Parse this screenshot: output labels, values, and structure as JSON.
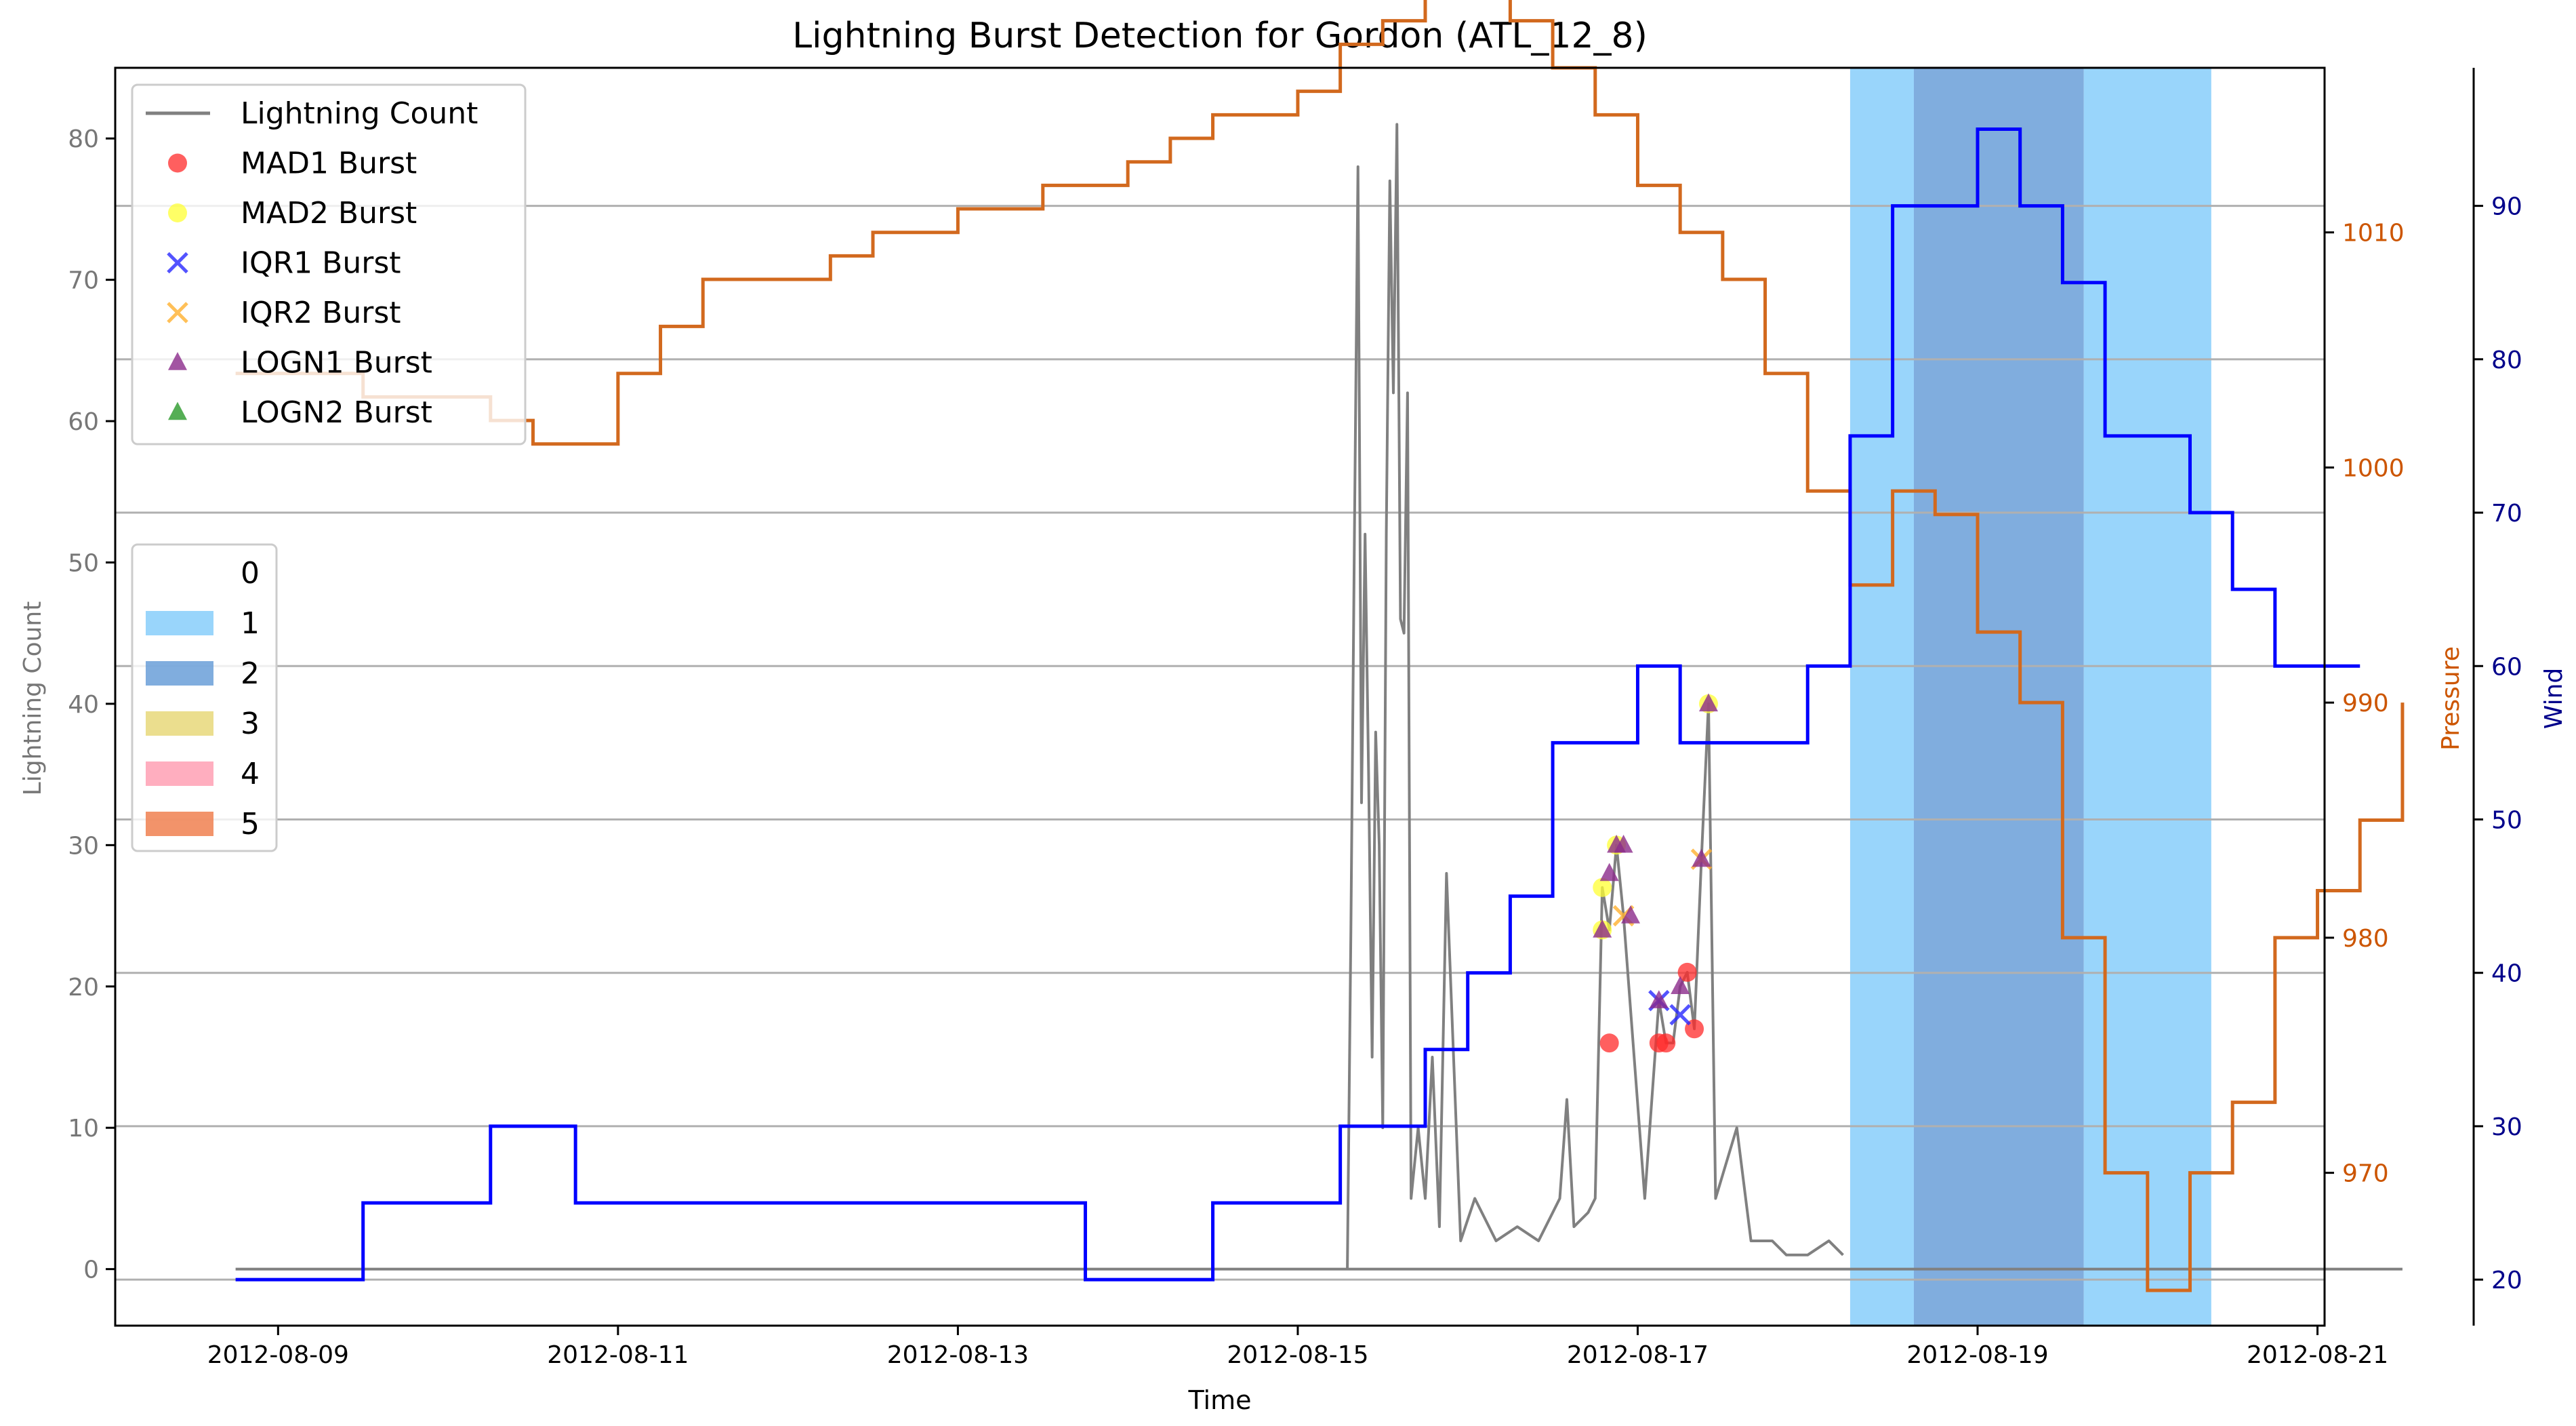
{
  "chart_data": {
    "type": "line",
    "title": "Lightning Burst Detection for Gordon (ATL_12_8)",
    "xlabel": "Time",
    "ylabel_left": "Lightning Count",
    "ylabel_pressure": "Pressure",
    "ylabel_wind": "Wind",
    "x_ticks": [
      "2012-08-09",
      "2012-08-11",
      "2012-08-13",
      "2012-08-15",
      "2012-08-17",
      "2012-08-19",
      "2012-08-21"
    ],
    "xlim": [
      "2012-08-08 01:00",
      "2012-08-21 01:00"
    ],
    "ylim_count": [
      -4,
      85
    ],
    "ylim_pressure": [
      963.5,
      1017
    ],
    "ylim_wind": [
      17,
      99
    ],
    "yticks_count": [
      0,
      10,
      20,
      30,
      40,
      50,
      60,
      70,
      80
    ],
    "yticks_pressure": [
      970,
      980,
      990,
      1000,
      1010
    ],
    "yticks_wind": [
      20,
      30,
      40,
      50,
      60,
      70,
      80,
      90
    ],
    "colors": {
      "lightning": "#808080",
      "pressure": "#d2691e",
      "wind": "#0000ff",
      "pressure_axis": "#cc5500",
      "wind_axis": "#00008b",
      "cat0": "#ffffff",
      "cat1": "#87cefa",
      "cat2": "#6a9fd8",
      "cat3": "#e8d87a",
      "cat4": "#ffa0b4",
      "cat5": "#f08050"
    },
    "category_spans": [
      {
        "category": 1,
        "start": "2012-08-18 06:00",
        "end": "2012-08-18 15:00"
      },
      {
        "category": 2,
        "start": "2012-08-18 15:00",
        "end": "2012-08-19 15:00"
      },
      {
        "category": 1,
        "start": "2012-08-19 15:00",
        "end": "2012-08-20 09:00"
      }
    ],
    "legend_series": [
      {
        "label": "Lightning Count",
        "marker": "line",
        "color": "#808080"
      },
      {
        "label": "MAD1 Burst",
        "marker": "circle",
        "color": "#ff2a2a"
      },
      {
        "label": "MAD2 Burst",
        "marker": "circle",
        "color": "#ffff33"
      },
      {
        "label": "IQR1 Burst",
        "marker": "x",
        "color": "#2828ff"
      },
      {
        "label": "IQR2 Burst",
        "marker": "x",
        "color": "#ffb02e"
      },
      {
        "label": "LOGN1 Burst",
        "marker": "triangle",
        "color": "#8b2a8b"
      },
      {
        "label": "LOGN2 Burst",
        "marker": "triangle",
        "color": "#2a9a2a"
      }
    ],
    "legend_categories": [
      {
        "label": "0",
        "color": "#ffffff"
      },
      {
        "label": "1",
        "color": "#87cefa"
      },
      {
        "label": "2",
        "color": "#6a9fd8"
      },
      {
        "label": "3",
        "color": "#e8d87a"
      },
      {
        "label": "4",
        "color": "#ffa0b4"
      },
      {
        "label": "5",
        "color": "#f08050"
      }
    ],
    "pressure_steps": [
      [
        "2012-08-08 18:00",
        1004
      ],
      [
        "2012-08-09 12:00",
        1003
      ],
      [
        "2012-08-10 06:00",
        1002
      ],
      [
        "2012-08-10 12:00",
        1001
      ],
      [
        "2012-08-11 00:00",
        1004
      ],
      [
        "2012-08-11 06:00",
        1006
      ],
      [
        "2012-08-11 12:00",
        1008
      ],
      [
        "2012-08-12 06:00",
        1009
      ],
      [
        "2012-08-12 12:00",
        1010
      ],
      [
        "2012-08-13 00:00",
        1011
      ],
      [
        "2012-08-13 12:00",
        1012
      ],
      [
        "2012-08-14 00:00",
        1013
      ],
      [
        "2012-08-14 06:00",
        1014
      ],
      [
        "2012-08-14 12:00",
        1015
      ],
      [
        "2012-08-15 00:00",
        1016
      ],
      [
        "2012-08-15 06:00",
        1018
      ],
      [
        "2012-08-15 12:00",
        1019
      ],
      [
        "2012-08-15 18:00",
        1020
      ],
      [
        "2012-08-16 06:00",
        1019
      ],
      [
        "2012-08-16 12:00",
        1017
      ],
      [
        "2012-08-16 18:00",
        1015
      ],
      [
        "2012-08-17 00:00",
        1012
      ],
      [
        "2012-08-17 06:00",
        1010
      ],
      [
        "2012-08-17 12:00",
        1008
      ],
      [
        "2012-08-17 18:00",
        1004
      ],
      [
        "2012-08-18 00:00",
        999
      ],
      [
        "2012-08-18 06:00",
        995
      ],
      [
        "2012-08-18 12:00",
        999
      ],
      [
        "2012-08-18 18:00",
        998
      ],
      [
        "2012-08-19 00:00",
        993
      ],
      [
        "2012-08-19 06:00",
        990
      ],
      [
        "2012-08-19 12:00",
        980
      ],
      [
        "2012-08-19 18:00",
        970
      ],
      [
        "2012-08-20 00:00",
        965
      ],
      [
        "2012-08-20 06:00",
        970
      ],
      [
        "2012-08-20 12:00",
        973
      ],
      [
        "2012-08-20 18:00",
        980
      ],
      [
        "2012-08-21 00:00",
        982
      ],
      [
        "2012-08-21 06:00",
        985
      ],
      [
        "2012-08-21 12:00",
        990
      ]
    ],
    "wind_steps": [
      [
        "2012-08-08 18:00",
        20
      ],
      [
        "2012-08-09 12:00",
        25
      ],
      [
        "2012-08-10 06:00",
        30
      ],
      [
        "2012-08-10 18:00",
        25
      ],
      [
        "2012-08-13 18:00",
        20
      ],
      [
        "2012-08-14 12:00",
        25
      ],
      [
        "2012-08-15 06:00",
        30
      ],
      [
        "2012-08-15 18:00",
        35
      ],
      [
        "2012-08-16 00:00",
        40
      ],
      [
        "2012-08-16 06:00",
        45
      ],
      [
        "2012-08-16 12:00",
        55
      ],
      [
        "2012-08-17 00:00",
        60
      ],
      [
        "2012-08-17 06:00",
        55
      ],
      [
        "2012-08-18 00:00",
        60
      ],
      [
        "2012-08-18 06:00",
        75
      ],
      [
        "2012-08-18 12:00",
        90
      ],
      [
        "2012-08-19 00:00",
        95
      ],
      [
        "2012-08-19 06:00",
        90
      ],
      [
        "2012-08-19 12:00",
        85
      ],
      [
        "2012-08-19 18:00",
        75
      ],
      [
        "2012-08-20 06:00",
        70
      ],
      [
        "2012-08-20 12:00",
        65
      ],
      [
        "2012-08-20 18:00",
        60
      ],
      [
        "2012-08-21 00:00",
        60
      ],
      [
        "2012-08-21 06:00",
        60
      ]
    ],
    "lightning_series": [
      [
        "2012-08-15 07:00",
        0
      ],
      [
        "2012-08-15 07:30",
        24
      ],
      [
        "2012-08-15 08:00",
        52
      ],
      [
        "2012-08-15 08:30",
        78
      ],
      [
        "2012-08-15 09:00",
        33
      ],
      [
        "2012-08-15 09:30",
        52
      ],
      [
        "2012-08-15 10:00",
        35
      ],
      [
        "2012-08-15 10:30",
        15
      ],
      [
        "2012-08-15 11:00",
        38
      ],
      [
        "2012-08-15 11:30",
        30
      ],
      [
        "2012-08-15 12:00",
        10
      ],
      [
        "2012-08-15 12:30",
        52
      ],
      [
        "2012-08-15 13:00",
        77
      ],
      [
        "2012-08-15 13:30",
        62
      ],
      [
        "2012-08-15 14:00",
        81
      ],
      [
        "2012-08-15 14:30",
        46
      ],
      [
        "2012-08-15 15:00",
        45
      ],
      [
        "2012-08-15 15:30",
        62
      ],
      [
        "2012-08-15 16:00",
        5
      ],
      [
        "2012-08-15 17:00",
        10
      ],
      [
        "2012-08-15 18:00",
        5
      ],
      [
        "2012-08-15 19:00",
        15
      ],
      [
        "2012-08-15 20:00",
        3
      ],
      [
        "2012-08-15 21:00",
        28
      ],
      [
        "2012-08-15 22:00",
        15
      ],
      [
        "2012-08-15 23:00",
        2
      ],
      [
        "2012-08-16 01:00",
        5
      ],
      [
        "2012-08-16 04:00",
        2
      ],
      [
        "2012-08-16 07:00",
        3
      ],
      [
        "2012-08-16 10:00",
        2
      ],
      [
        "2012-08-16 13:00",
        5
      ],
      [
        "2012-08-16 14:00",
        12
      ],
      [
        "2012-08-16 15:00",
        3
      ],
      [
        "2012-08-16 17:00",
        4
      ],
      [
        "2012-08-16 18:00",
        5
      ],
      [
        "2012-08-16 19:00",
        27
      ],
      [
        "2012-08-16 20:00",
        24
      ],
      [
        "2012-08-16 21:00",
        30
      ],
      [
        "2012-08-16 22:00",
        25
      ],
      [
        "2012-08-17 01:00",
        5
      ],
      [
        "2012-08-17 03:00",
        19
      ],
      [
        "2012-08-17 04:00",
        16
      ],
      [
        "2012-08-17 05:00",
        16
      ],
      [
        "2012-08-17 06:00",
        20
      ],
      [
        "2012-08-17 07:00",
        21
      ],
      [
        "2012-08-17 08:00",
        17
      ],
      [
        "2012-08-17 09:00",
        29
      ],
      [
        "2012-08-17 10:00",
        40
      ],
      [
        "2012-08-17 11:00",
        5
      ],
      [
        "2012-08-17 14:00",
        10
      ],
      [
        "2012-08-17 16:00",
        2
      ],
      [
        "2012-08-17 19:00",
        2
      ],
      [
        "2012-08-17 21:00",
        1
      ],
      [
        "2012-08-18 00:00",
        1
      ],
      [
        "2012-08-18 03:00",
        2
      ],
      [
        "2012-08-18 05:00",
        1
      ]
    ],
    "bursts": [
      {
        "type": "MAD1",
        "x": "2012-08-16 20:00",
        "y": 16
      },
      {
        "type": "MAD1",
        "x": "2012-08-17 03:00",
        "y": 16
      },
      {
        "type": "MAD1",
        "x": "2012-08-17 04:00",
        "y": 16
      },
      {
        "type": "MAD1",
        "x": "2012-08-17 08:00",
        "y": 17
      },
      {
        "type": "MAD1",
        "x": "2012-08-17 07:00",
        "y": 21
      },
      {
        "type": "MAD2",
        "x": "2012-08-16 19:00",
        "y": 24
      },
      {
        "type": "MAD2",
        "x": "2012-08-16 19:00",
        "y": 27
      },
      {
        "type": "MAD2",
        "x": "2012-08-16 21:00",
        "y": 30
      },
      {
        "type": "MAD2",
        "x": "2012-08-17 10:00",
        "y": 40
      },
      {
        "type": "IQR1",
        "x": "2012-08-17 03:00",
        "y": 19
      },
      {
        "type": "IQR1",
        "x": "2012-08-17 06:00",
        "y": 18
      },
      {
        "type": "IQR2",
        "x": "2012-08-17 09:00",
        "y": 29
      },
      {
        "type": "IQR2",
        "x": "2012-08-16 22:00",
        "y": 25
      },
      {
        "type": "LOGN1",
        "x": "2012-08-16 19:00",
        "y": 24
      },
      {
        "type": "LOGN1",
        "x": "2012-08-16 20:00",
        "y": 28
      },
      {
        "type": "LOGN1",
        "x": "2012-08-16 21:00",
        "y": 30
      },
      {
        "type": "LOGN1",
        "x": "2012-08-16 22:00",
        "y": 30
      },
      {
        "type": "LOGN1",
        "x": "2012-08-16 23:00",
        "y": 25
      },
      {
        "type": "LOGN1",
        "x": "2012-08-17 03:00",
        "y": 19
      },
      {
        "type": "LOGN1",
        "x": "2012-08-17 06:00",
        "y": 20
      },
      {
        "type": "LOGN1",
        "x": "2012-08-17 09:00",
        "y": 29
      },
      {
        "type": "LOGN1",
        "x": "2012-08-17 10:00",
        "y": 40
      }
    ],
    "grid": "horizontal-on-wind-ticks",
    "legend_placement": "upper-left"
  }
}
